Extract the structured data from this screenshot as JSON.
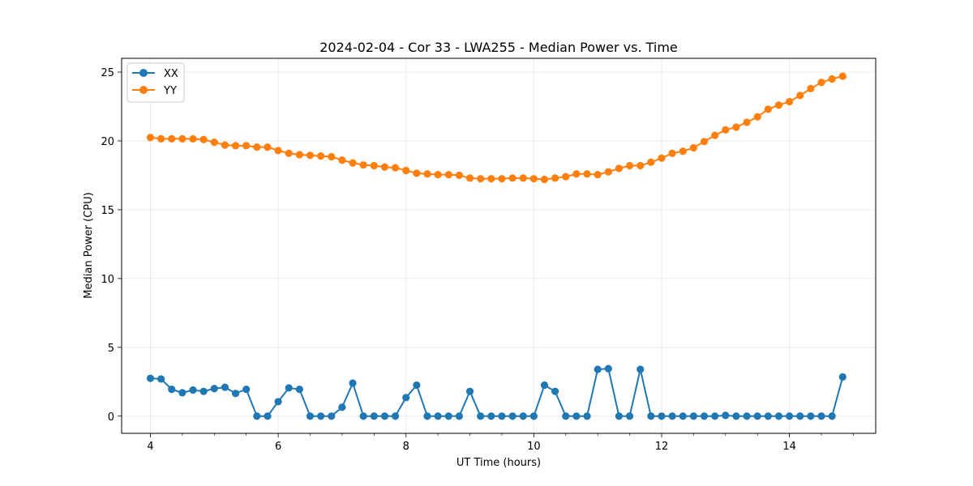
{
  "chart_data": {
    "type": "line",
    "title": "2024-02-04 - Cor 33 - LWA255 - Median Power vs. Time",
    "xlabel": "UT Time (hours)",
    "ylabel": "Median Power (CPU)",
    "xlim": [
      3.55,
      15.35
    ],
    "ylim": [
      -1.25,
      26.0
    ],
    "xticks": [
      4,
      6,
      8,
      10,
      12,
      14
    ],
    "xtick_labels": [
      "4",
      "6",
      "8",
      "10",
      "12",
      "14"
    ],
    "yticks": [
      0,
      5,
      10,
      15,
      20,
      25
    ],
    "ytick_labels": [
      "0",
      "5",
      "10",
      "15",
      "20",
      "25"
    ],
    "grid": true,
    "legend_position": "top-left",
    "x": [
      4.0,
      4.1667,
      4.3333,
      4.5,
      4.6667,
      4.8333,
      5.0,
      5.1667,
      5.3333,
      5.5,
      5.6667,
      5.8333,
      6.0,
      6.1667,
      6.3333,
      6.5,
      6.6667,
      6.8333,
      7.0,
      7.1667,
      7.3333,
      7.5,
      7.6667,
      7.8333,
      8.0,
      8.1667,
      8.3333,
      8.5,
      8.6667,
      8.8333,
      9.0,
      9.1667,
      9.3333,
      9.5,
      9.6667,
      9.8333,
      10.0,
      10.1667,
      10.3333,
      10.5,
      10.6667,
      10.8333,
      11.0,
      11.1667,
      11.3333,
      11.5,
      11.6667,
      11.8333,
      12.0,
      12.1667,
      12.3333,
      12.5,
      12.6667,
      12.8333,
      13.0,
      13.1667,
      13.3333,
      13.5,
      13.6667,
      13.8333,
      14.0,
      14.1667,
      14.3333,
      14.5,
      14.6667,
      14.8333
    ],
    "series": [
      {
        "name": "XX",
        "color": "#1f77b4",
        "values": [
          2.75,
          2.7,
          1.95,
          1.7,
          1.9,
          1.8,
          2.0,
          2.1,
          1.65,
          1.95,
          0.0,
          0.0,
          1.05,
          2.05,
          1.95,
          0.0,
          0.0,
          0.0,
          0.65,
          2.4,
          0.0,
          0.0,
          0.0,
          0.0,
          1.35,
          2.25,
          0.0,
          0.0,
          0.0,
          0.0,
          1.8,
          0.0,
          0.0,
          0.0,
          0.0,
          0.0,
          0.0,
          2.25,
          1.8,
          0.0,
          0.0,
          0.0,
          3.4,
          3.45,
          0.0,
          0.0,
          3.4,
          0.0,
          0.0,
          0.0,
          0.0,
          0.0,
          0.0,
          0.0,
          0.05,
          0.0,
          0.0,
          0.0,
          0.0,
          0.0,
          0.0,
          0.0,
          0.0,
          0.0,
          0.0,
          2.85
        ]
      },
      {
        "name": "YY",
        "color": "#ff7f0e",
        "values": [
          20.25,
          20.15,
          20.15,
          20.15,
          20.15,
          20.1,
          19.9,
          19.7,
          19.65,
          19.65,
          19.55,
          19.55,
          19.3,
          19.1,
          19.0,
          18.95,
          18.9,
          18.85,
          18.6,
          18.4,
          18.25,
          18.2,
          18.1,
          18.05,
          17.85,
          17.65,
          17.6,
          17.55,
          17.55,
          17.5,
          17.3,
          17.25,
          17.25,
          17.25,
          17.3,
          17.3,
          17.25,
          17.2,
          17.3,
          17.4,
          17.6,
          17.6,
          17.55,
          17.75,
          18.0,
          18.2,
          18.2,
          18.45,
          18.75,
          19.1,
          19.25,
          19.5,
          19.95,
          20.4,
          20.8,
          21.0,
          21.35,
          21.75,
          22.3,
          22.6,
          22.85,
          23.3,
          23.8,
          24.25,
          24.5,
          24.7
        ]
      }
    ]
  }
}
